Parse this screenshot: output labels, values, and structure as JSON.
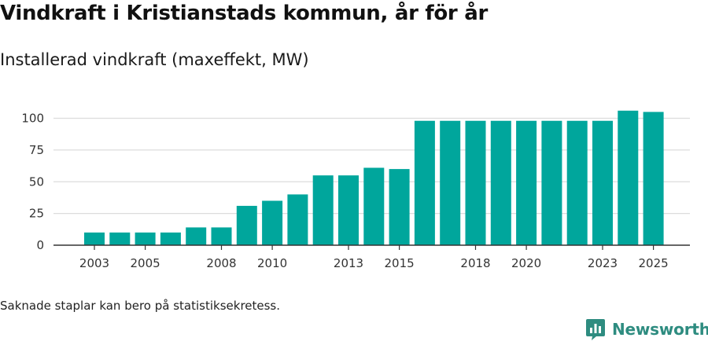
{
  "header": {
    "title": "Vindkraft i Kristianstads kommun, år för år",
    "subtitle": "Installerad vindkraft (maxeffekt, MW)"
  },
  "footer": {
    "note": "Saknade staplar kan bero på statistiksekretess.",
    "brand_name": "Newsworthy"
  },
  "colors": {
    "bar": "#00a69c",
    "grid": "#dcdcdc",
    "axis": "#333333",
    "brand": "#2e8c80"
  },
  "chart_data": {
    "type": "bar",
    "title": "Vindkraft i Kristianstads kommun, år för år",
    "subtitle": "Installerad vindkraft (maxeffekt, MW)",
    "xlabel": "",
    "ylabel": "",
    "ylim": [
      0,
      110
    ],
    "yticks": [
      0,
      25,
      50,
      75,
      100
    ],
    "grid": true,
    "categories": [
      2003,
      2004,
      2005,
      2006,
      2007,
      2008,
      2009,
      2010,
      2011,
      2012,
      2013,
      2014,
      2015,
      2016,
      2017,
      2018,
      2019,
      2020,
      2021,
      2022,
      2023,
      2024,
      2025
    ],
    "xtick_labels": [
      2003,
      2005,
      2008,
      2010,
      2013,
      2015,
      2018,
      2020,
      2023,
      2025
    ],
    "values": [
      10,
      10,
      10,
      10,
      14,
      14,
      31,
      35,
      40,
      55,
      55,
      61,
      60,
      98,
      98,
      98,
      98,
      98,
      98,
      98,
      98,
      106,
      105
    ]
  }
}
